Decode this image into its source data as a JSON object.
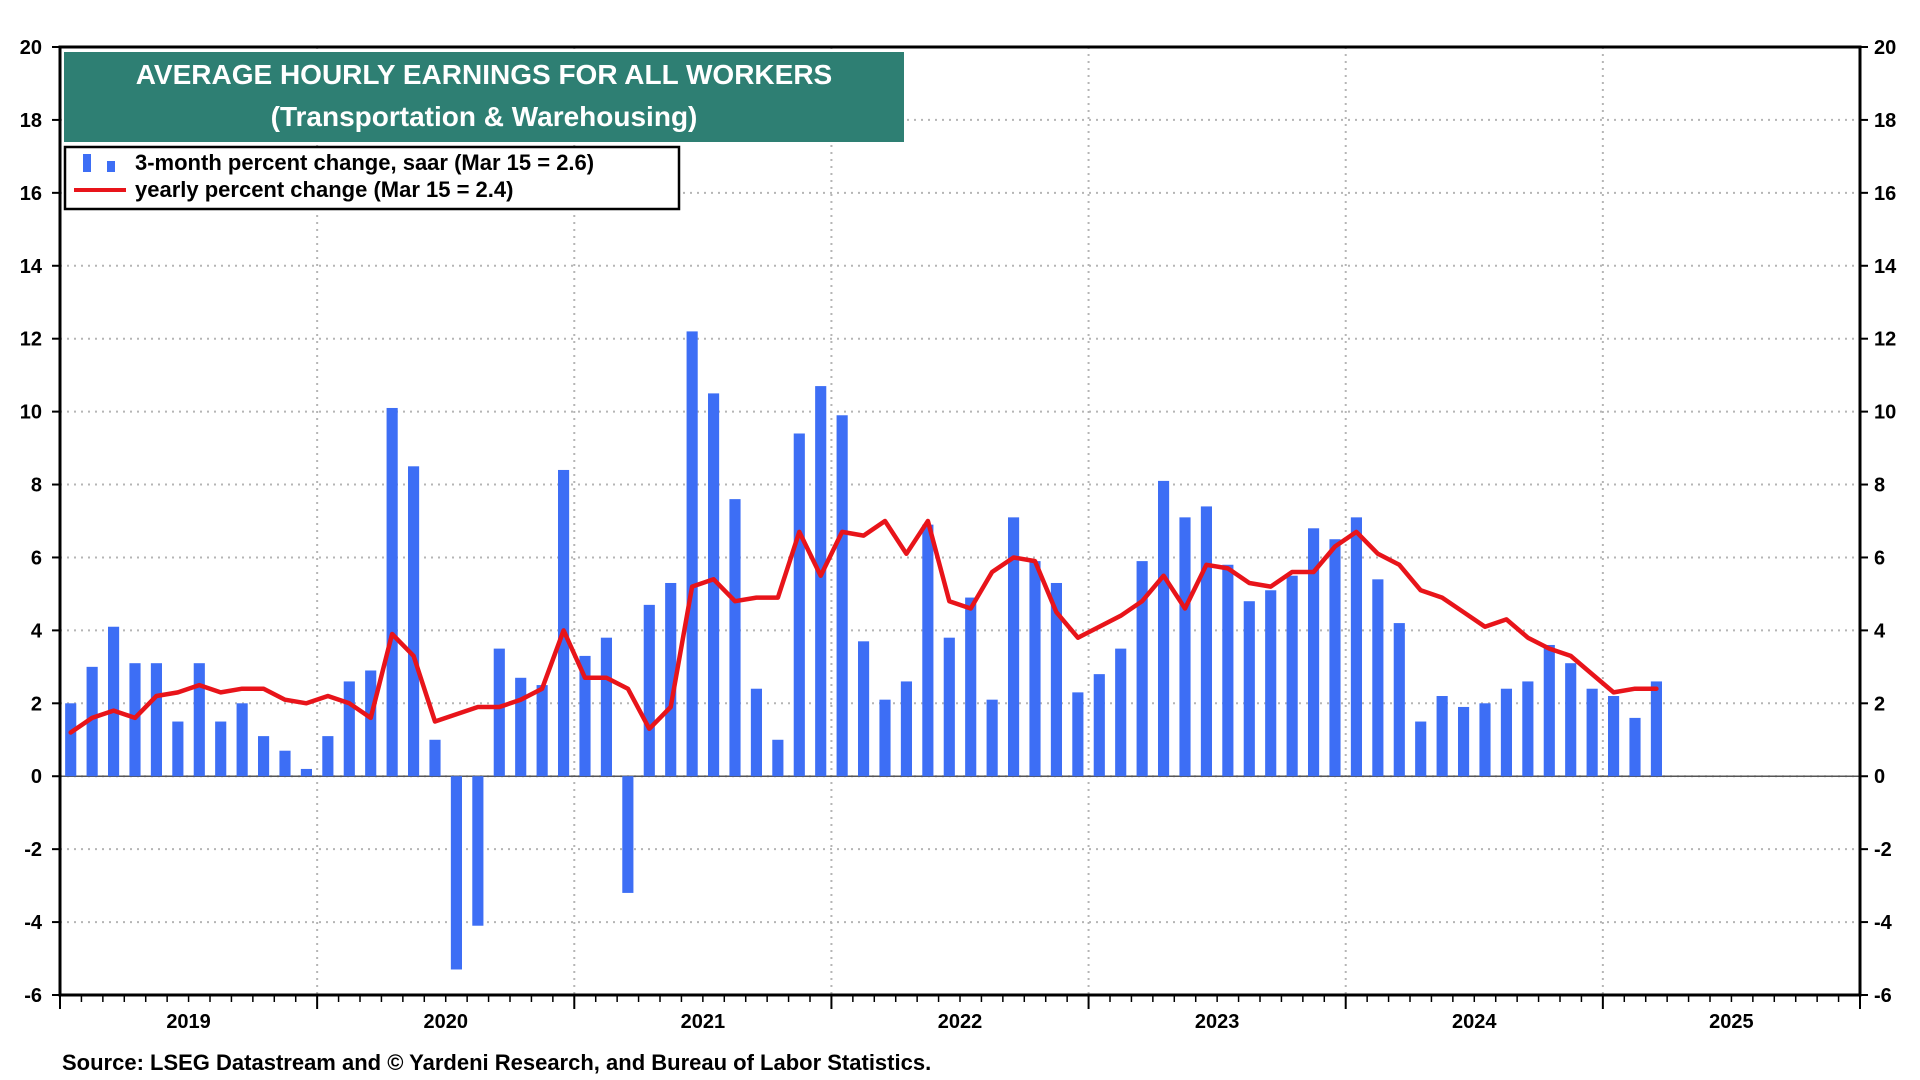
{
  "chart_data": {
    "type": "bar",
    "title": "AVERAGE HOURLY EARNINGS FOR ALL WORKERS",
    "subtitle": "(Transportation & Warehousing)",
    "source": "Source: LSEG Datastream and © Yardeni Research, and Bureau of Labor Statistics.",
    "ylim": [
      -6,
      20
    ],
    "yticks": [
      -6,
      -4,
      -2,
      0,
      2,
      4,
      6,
      8,
      10,
      12,
      14,
      16,
      18,
      20
    ],
    "yticks_labels": [
      "-6",
      "-4",
      "-2",
      "0",
      "2",
      "4",
      "6",
      "8",
      "10",
      "12",
      "14",
      "16",
      "18",
      "20"
    ],
    "x_start_year": 2019,
    "x_end_year": 2026,
    "year_labels": [
      "2019",
      "2020",
      "2021",
      "2022",
      "2023",
      "2024",
      "2025"
    ],
    "grid": true,
    "legend_position": "top-left",
    "colors": {
      "bars": "#3d6ef5",
      "line": "#e8141a",
      "title_bg": "#2e7f73",
      "title_text": "#ffffff"
    },
    "series": [
      {
        "name": "3-month percent change, saar (Mar 15 = 2.6)",
        "kind": "bar",
        "start": "2019-01",
        "values": [
          2.0,
          3.0,
          4.1,
          3.1,
          3.1,
          1.5,
          3.1,
          1.5,
          2.0,
          1.1,
          0.7,
          0.2,
          1.1,
          2.6,
          2.9,
          10.1,
          8.5,
          1.0,
          -5.3,
          -4.1,
          3.5,
          2.7,
          2.5,
          8.4,
          3.3,
          3.8,
          -3.2,
          4.7,
          5.3,
          12.2,
          10.5,
          7.6,
          2.4,
          1.0,
          9.4,
          10.7,
          9.9,
          3.7,
          2.1,
          2.6,
          6.9,
          3.8,
          4.9,
          2.1,
          7.1,
          5.9,
          5.3,
          2.3,
          2.8,
          3.5,
          5.9,
          8.1,
          7.1,
          7.4,
          5.8,
          4.8,
          5.1,
          5.5,
          6.8,
          6.5,
          7.1,
          5.4,
          4.2,
          1.5,
          2.2,
          1.9,
          2.0,
          2.4,
          2.6,
          3.6,
          3.1,
          2.4,
          2.2,
          1.6,
          2.6
        ]
      },
      {
        "name": "yearly percent change (Mar 15 = 2.4)",
        "kind": "line",
        "start": "2019-01",
        "values": [
          1.2,
          1.6,
          1.8,
          1.6,
          2.2,
          2.3,
          2.5,
          2.3,
          2.4,
          2.4,
          2.1,
          2.0,
          2.2,
          2.0,
          1.6,
          3.9,
          3.3,
          1.5,
          1.7,
          1.9,
          1.9,
          2.1,
          2.4,
          4.0,
          2.7,
          2.7,
          2.4,
          1.3,
          1.9,
          5.2,
          5.4,
          4.8,
          4.9,
          4.9,
          6.7,
          5.5,
          6.7,
          6.6,
          7.0,
          6.1,
          7.0,
          4.8,
          4.6,
          5.6,
          6.0,
          5.9,
          4.5,
          3.8,
          4.1,
          4.4,
          4.8,
          5.5,
          4.6,
          5.8,
          5.7,
          5.3,
          5.2,
          5.6,
          5.6,
          6.3,
          6.7,
          6.1,
          5.8,
          5.1,
          4.9,
          4.5,
          4.1,
          4.3,
          3.8,
          3.5,
          3.3,
          2.8,
          2.3,
          2.4,
          2.4
        ]
      }
    ]
  }
}
